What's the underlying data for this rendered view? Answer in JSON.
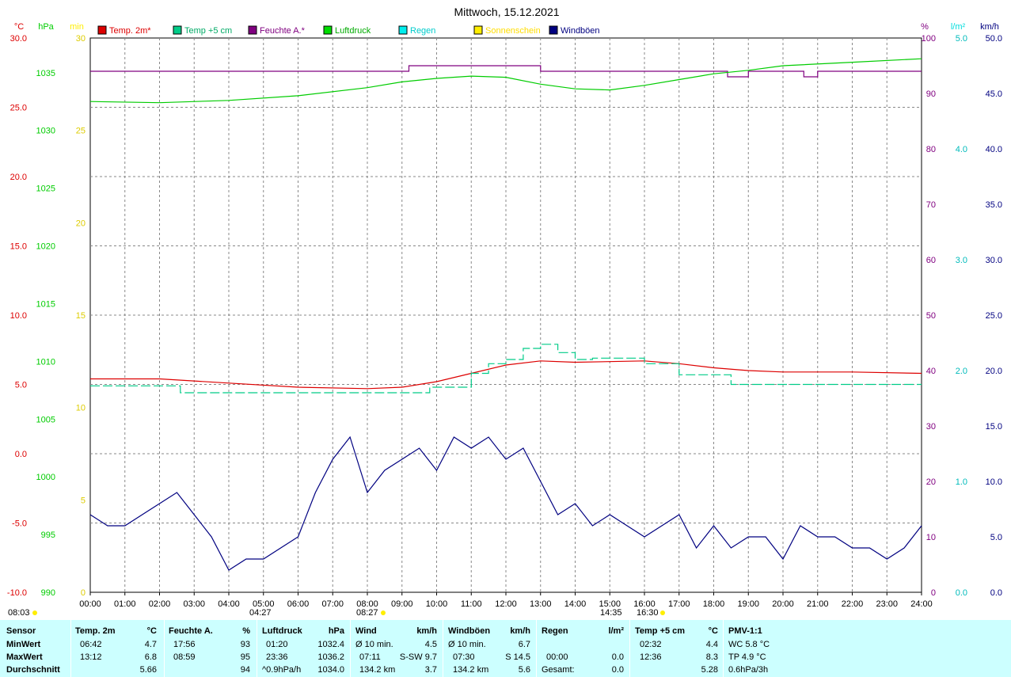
{
  "title": "Mittwoch, 15.12.2021",
  "colors": {
    "temp2m": "#dd0000",
    "temp5cm": "#00cc88",
    "humidity": "#800080",
    "pressure": "#00cc00",
    "rain": "#00dddd",
    "sun": "#ffee00",
    "gusts": "#000080",
    "grid": "#888888",
    "table_bg": "#ccffff"
  },
  "axis_units": {
    "temp": "°C",
    "pressure": "hPa",
    "sun": "min",
    "humidity": "%",
    "rain": "l/m²",
    "wind": "km/h"
  },
  "legend": [
    "Temp. 2m*",
    "Temp +5 cm",
    "Feuchte A.*",
    "Luftdruck",
    "Regen",
    "Sonnenschein",
    "Windböen"
  ],
  "sun_markers": {
    "left": "08:03",
    "sunrise": "08:27",
    "noon_label": "14:35",
    "sunset": "16:30",
    "moon": "04:27"
  },
  "chart_data": {
    "type": "line",
    "x_ticks": [
      "00:00",
      "01:00",
      "02:00",
      "03:00",
      "04:00",
      "05:00",
      "06:00",
      "07:00",
      "08:00",
      "09:00",
      "10:00",
      "11:00",
      "12:00",
      "13:00",
      "14:00",
      "15:00",
      "16:00",
      "17:00",
      "18:00",
      "19:00",
      "20:00",
      "21:00",
      "22:00",
      "23:00",
      "24:00"
    ],
    "axes": {
      "temp": {
        "range": [
          -10,
          30
        ],
        "ticks": [
          "30.0",
          "25.0",
          "20.0",
          "15.0",
          "10.0",
          "5.0",
          "0.0",
          "-5.0",
          "-10.0"
        ]
      },
      "pressure": {
        "range": [
          990,
          1038
        ],
        "ticks": [
          "1035",
          "1030",
          "1025",
          "1020",
          "1015",
          "1010",
          "1005",
          "1000",
          "995",
          "990"
        ]
      },
      "sun": {
        "range": [
          0,
          30
        ],
        "ticks": [
          "30",
          "25",
          "20",
          "15",
          "10",
          "5",
          "0"
        ]
      },
      "humidity": {
        "range": [
          0,
          100
        ],
        "ticks": [
          "100",
          "90",
          "80",
          "70",
          "60",
          "50",
          "40",
          "30",
          "20",
          "10",
          "0"
        ]
      },
      "rain": {
        "range": [
          0,
          5
        ],
        "ticks": [
          "5.0",
          "4.0",
          "3.0",
          "2.0",
          "1.0",
          "0.0"
        ]
      },
      "wind": {
        "range": [
          0,
          50
        ],
        "ticks": [
          "50.0",
          "45.0",
          "40.0",
          "35.0",
          "30.0",
          "25.0",
          "20.0",
          "15.0",
          "10.0",
          "5.0",
          "0.0"
        ]
      }
    },
    "series": [
      {
        "name": "Temp. 2m*",
        "axis": "temp",
        "x": [
          0,
          2,
          4,
          6,
          8,
          9,
          10,
          11,
          12,
          13,
          14,
          16,
          17,
          18,
          19,
          20,
          22,
          24
        ],
        "y": [
          5.4,
          5.4,
          5.1,
          4.8,
          4.7,
          4.8,
          5.2,
          5.8,
          6.4,
          6.7,
          6.6,
          6.7,
          6.5,
          6.2,
          6.0,
          5.9,
          5.9,
          5.8
        ]
      },
      {
        "name": "Temp +5 cm",
        "axis": "temp",
        "x": [
          0,
          2.5,
          2.6,
          9.6,
          9.8,
          11,
          11.5,
          12,
          12.5,
          13,
          13.5,
          14,
          14.5,
          15,
          16,
          16.5,
          17,
          18,
          18.5,
          24
        ],
        "y": [
          4.9,
          4.9,
          4.4,
          4.4,
          4.8,
          5.8,
          6.5,
          6.8,
          7.6,
          7.9,
          7.3,
          6.8,
          6.9,
          6.9,
          6.5,
          6.5,
          5.7,
          5.7,
          5.0,
          5.0
        ]
      },
      {
        "name": "Feuchte A.*",
        "axis": "humidity",
        "x": [
          0,
          9,
          9.2,
          12.8,
          13,
          18,
          18.4,
          19,
          20,
          20.6,
          21,
          24
        ],
        "y": [
          94,
          94,
          95,
          95,
          94,
          94,
          93,
          94,
          94,
          93,
          94,
          94
        ]
      },
      {
        "name": "Luftdruck",
        "axis": "pressure",
        "x": [
          0,
          2,
          4,
          6,
          8,
          9,
          10,
          11,
          12,
          13,
          14,
          15,
          16,
          17,
          18,
          19,
          20,
          22,
          24
        ],
        "y": [
          1032.5,
          1032.4,
          1032.6,
          1033.0,
          1033.7,
          1034.2,
          1034.5,
          1034.7,
          1034.6,
          1034.0,
          1033.6,
          1033.5,
          1033.9,
          1034.4,
          1034.9,
          1035.2,
          1035.6,
          1035.9,
          1036.2
        ]
      },
      {
        "name": "Windböen",
        "axis": "wind",
        "x": [
          0,
          0.5,
          1,
          1.5,
          2,
          2.5,
          3,
          3.5,
          4,
          4.5,
          5,
          5.5,
          6,
          6.5,
          7,
          7.5,
          8,
          8.5,
          9,
          9.5,
          10,
          10.5,
          11,
          11.5,
          12,
          12.5,
          13,
          13.5,
          14,
          14.5,
          15,
          15.5,
          16,
          16.5,
          17,
          17.5,
          18,
          18.5,
          19,
          19.5,
          20,
          20.5,
          21,
          21.5,
          22,
          22.5,
          23,
          23.5,
          24
        ],
        "y": [
          7,
          6,
          6,
          7,
          8,
          9,
          7,
          5,
          2,
          3,
          3,
          4,
          5,
          9,
          12,
          14,
          9,
          11,
          12,
          13,
          11,
          14,
          13,
          14,
          12,
          13,
          10,
          7,
          8,
          6,
          7,
          6,
          5,
          6,
          7,
          4,
          6,
          4,
          5,
          5,
          3,
          6,
          5,
          5,
          4,
          4,
          3,
          4,
          6
        ]
      }
    ]
  },
  "stats": {
    "row_labels": [
      "Sensor",
      "MinWert",
      "MaxWert",
      "Durchschnitt"
    ],
    "temp2m": {
      "header": "Temp. 2m",
      "unit": "°C",
      "min_time": "06:42",
      "min": "4.7",
      "max_time": "13:12",
      "max": "6.8",
      "avg": "5.66"
    },
    "humidity": {
      "header": "Feuchte A.",
      "unit": "%",
      "min_time": "17:56",
      "min": "93",
      "max_time": "08:59",
      "max": "95",
      "avg": "94"
    },
    "pressure": {
      "header": "Luftdruck",
      "unit": "hPa",
      "min_time": "01:20",
      "min": "1032.4",
      "max_time": "23:36",
      "max": "1036.2",
      "avg_note": "^0.9hPa/h",
      "avg": "1034.0"
    },
    "wind": {
      "header": "Wind",
      "unit": "km/h",
      "min_label": "Ø 10 min.",
      "min": "4.5",
      "max_time": "07:11",
      "max_dir": "S-SW 9.7",
      "avg_note": "134.2 km",
      "avg": "3.7"
    },
    "gusts": {
      "header": "Windböen",
      "unit": "km/h",
      "min_label": "Ø 10 min.",
      "min": "6.7",
      "max_time": "07:30",
      "max_dir": "S 14.5",
      "avg_note": "134.2 km",
      "avg": "5.6"
    },
    "rain": {
      "header": "Regen",
      "unit": "l/m²",
      "max_time": "00:00",
      "max": "0.0",
      "avg_note": "Gesamt:",
      "avg": "0.0"
    },
    "temp5cm": {
      "header": "Temp +5 cm",
      "unit": "°C",
      "min_time": "02:32",
      "min": "4.4",
      "max_time": "12:36",
      "max": "8.3",
      "avg": "5.28"
    },
    "pmv": {
      "header": "PMV-1:1",
      "wc": "WC 5.8 °C",
      "tp": "TP 4.9 °C",
      "trend": "0.6hPa/3h"
    }
  }
}
